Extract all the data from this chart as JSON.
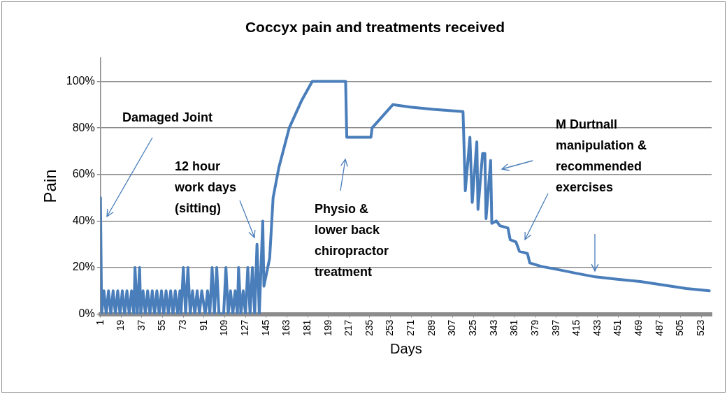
{
  "chart_data": {
    "type": "line",
    "title": "Coccyx pain and treatments received",
    "xlabel": "Days",
    "ylabel": "Pain",
    "x": [
      1,
      2,
      4,
      6,
      8,
      10,
      12,
      14,
      16,
      18,
      20,
      22,
      24,
      26,
      28,
      30,
      31,
      33,
      35,
      36,
      38,
      40,
      42,
      44,
      46,
      48,
      50,
      52,
      54,
      56,
      58,
      60,
      62,
      64,
      66,
      68,
      70,
      71,
      73,
      75,
      77,
      79,
      81,
      83,
      85,
      87,
      89,
      92,
      94,
      96,
      98,
      100,
      102,
      104,
      108,
      110,
      112,
      114,
      116,
      118,
      120,
      121,
      123,
      125,
      127,
      129,
      131,
      133,
      135,
      137,
      139,
      142,
      143,
      148,
      151,
      156,
      165,
      176,
      185,
      214,
      215,
      236,
      237,
      255,
      270,
      290,
      316,
      318,
      322,
      324,
      328,
      329,
      333,
      335,
      336,
      340,
      341,
      345,
      348,
      355,
      357,
      362,
      365,
      372,
      374,
      384,
      400,
      415,
      431,
      450,
      470,
      490,
      510,
      530
    ],
    "series": [
      {
        "color": "#4a7ebb",
        "values": [
          50,
          0,
          10,
          0,
          10,
          0,
          10,
          0,
          10,
          0,
          10,
          0,
          10,
          0,
          10,
          0,
          20,
          0,
          20,
          0,
          10,
          0,
          10,
          0,
          10,
          0,
          10,
          0,
          10,
          0,
          10,
          0,
          10,
          0,
          10,
          0,
          10,
          0,
          20,
          0,
          20,
          0,
          10,
          0,
          10,
          0,
          10,
          0,
          10,
          0,
          20,
          0,
          20,
          0,
          0,
          20,
          0,
          10,
          0,
          10,
          0,
          20,
          0,
          10,
          0,
          20,
          0,
          20,
          0,
          30,
          0,
          40,
          12,
          24,
          50,
          63,
          80,
          92,
          100,
          100,
          76,
          76,
          80,
          90,
          89,
          88,
          87,
          53,
          76,
          48,
          74,
          45,
          69,
          69,
          41,
          66,
          39,
          40,
          38,
          37,
          32,
          31,
          27,
          26,
          22,
          20.5,
          19,
          17.5,
          16,
          15,
          14,
          12.5,
          11,
          10
        ]
      }
    ],
    "xlim": [
      1,
      532
    ],
    "xticks": [
      1,
      19,
      37,
      55,
      73,
      91,
      109,
      127,
      145,
      163,
      181,
      199,
      217,
      235,
      253,
      271,
      289,
      307,
      325,
      343,
      361,
      379,
      397,
      415,
      433,
      451,
      469,
      487,
      505,
      523
    ],
    "ylim": [
      0,
      110
    ],
    "yticks": [
      {
        "value": 0,
        "label": "0%"
      },
      {
        "value": 20,
        "label": "20%"
      },
      {
        "value": 40,
        "label": "40%"
      },
      {
        "value": 60,
        "label": "60%"
      },
      {
        "value": 80,
        "label": "80%"
      },
      {
        "value": 100,
        "label": "100%"
      }
    ],
    "grid": "y",
    "legend": false,
    "marker": "none",
    "line_style": "solid",
    "annotations": [
      "Damaged Joint",
      "12 hour work days (sitting)",
      "Physio & lower back chiropractor treatment",
      "M Durtnall manipulation & recommended exercises"
    ]
  }
}
